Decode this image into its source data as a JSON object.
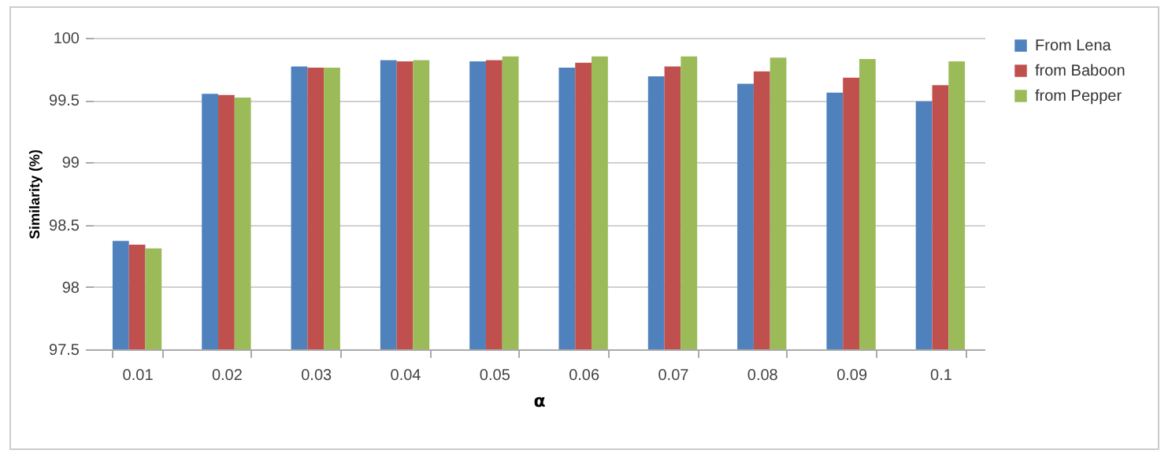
{
  "chart_data": {
    "type": "bar",
    "xlabel": "α",
    "ylabel": "Similarity (%)",
    "categories": [
      "0.01",
      "0.02",
      "0.03",
      "0.04",
      "0.05",
      "0.06",
      "0.07",
      "0.08",
      "0.09",
      "0.1"
    ],
    "series": [
      {
        "name": "From Lena",
        "color": "#4f81bd",
        "values": [
          98.37,
          99.55,
          99.77,
          99.82,
          99.81,
          99.76,
          99.69,
          99.63,
          99.56,
          99.49
        ]
      },
      {
        "name": " from Baboon",
        "color": "#c0504d",
        "values": [
          98.34,
          99.54,
          99.76,
          99.81,
          99.82,
          99.8,
          99.77,
          99.73,
          99.68,
          99.62
        ]
      },
      {
        "name": " from Pepper",
        "color": "#9bbb59",
        "values": [
          98.31,
          99.52,
          99.76,
          99.82,
          99.85,
          99.85,
          99.85,
          99.84,
          99.83,
          99.81
        ]
      }
    ],
    "ylim": [
      97.5,
      100
    ],
    "yticks": [
      97.5,
      98,
      98.5,
      99,
      99.5,
      100
    ],
    "grid": "y",
    "legend": "right"
  }
}
